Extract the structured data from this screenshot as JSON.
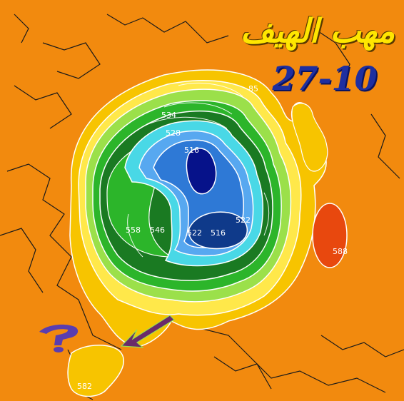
{
  "title_arabic": "مهب الهيف",
  "date_label": "27-10",
  "contour_labels": [
    {
      "id": "label-516-center",
      "text": "516"
    },
    {
      "id": "label-522-right",
      "text": "522"
    },
    {
      "id": "label-516-bottom",
      "text": "516"
    },
    {
      "id": "label-522-bottom",
      "text": "522"
    },
    {
      "id": "label-528-left",
      "text": "528"
    },
    {
      "id": "label-534",
      "text": "534"
    },
    {
      "id": "label-546",
      "text": "546"
    },
    {
      "id": "label-558",
      "text": "558"
    },
    {
      "id": "label-588",
      "text": "588"
    },
    {
      "id": "label-582",
      "text": "582"
    },
    {
      "id": "label-85",
      "text": "85"
    }
  ],
  "colors": {
    "background": "#f28a0e",
    "light_yellow": "#ffe84a",
    "yellow": "#f7c400",
    "light_green": "#9be04a",
    "green": "#2cb52a",
    "dark_green": "#1a7a22",
    "cyan": "#49d8e6",
    "light_blue": "#57a8f0",
    "blue": "#2e79d6",
    "dark_blue": "#0f3a8a",
    "deep_blue": "#06128a",
    "high_red": "#e8480e",
    "arrow": "#6a2a6a",
    "question_mark": "#5a3db0"
  }
}
